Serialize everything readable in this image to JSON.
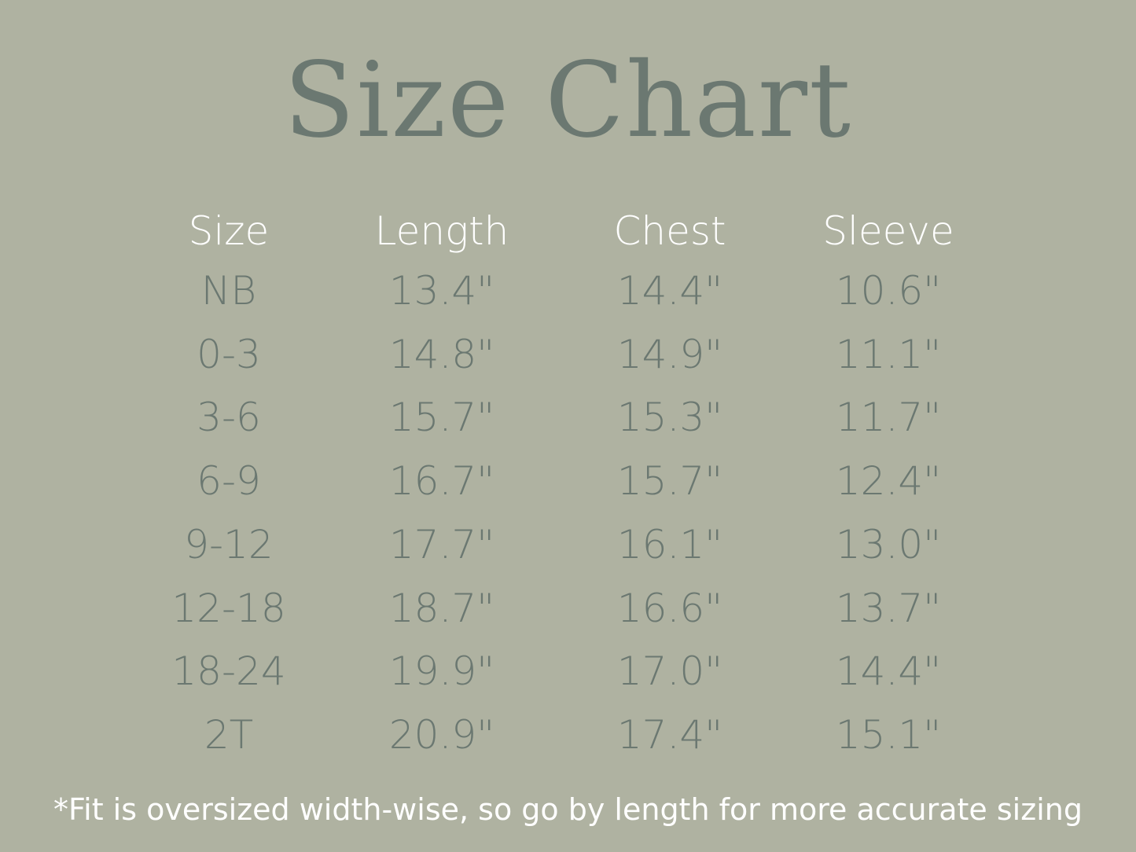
{
  "title": "Size Chart",
  "colors": {
    "background": "#afb2a1",
    "title": "#6b7871",
    "header": "#ffffff",
    "values": "#6b7871"
  },
  "table": {
    "headers": [
      "Size",
      "Length",
      "Chest",
      "Sleeve"
    ],
    "rows": [
      [
        "NB",
        "13.4\"",
        "14.4\"",
        "10.6\""
      ],
      [
        "0-3",
        "14.8\"",
        "14.9\"",
        "11.1\""
      ],
      [
        "3-6",
        "15.7\"",
        "15.3\"",
        "11.7\""
      ],
      [
        "6-9",
        "16.7\"",
        "15.7\"",
        "12.4\""
      ],
      [
        "9-12",
        "17.7\"",
        "16.1\"",
        "13.0\""
      ],
      [
        "12-18",
        "18.7\"",
        "16.6\"",
        "13.7\""
      ],
      [
        "18-24",
        "19.9\"",
        "17.0\"",
        "14.4\""
      ],
      [
        "2T",
        "20.9\"",
        "17.4\"",
        "15.1\""
      ]
    ]
  },
  "footnote": "*Fit is oversized width-wise, so go by length for more accurate sizing"
}
